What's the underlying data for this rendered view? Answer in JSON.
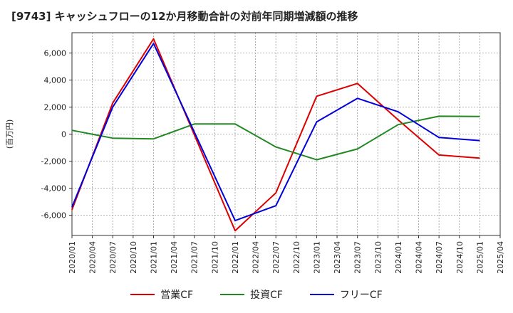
{
  "chart_data": {
    "type": "line",
    "title": "[9743]  キャッシュフローの12か月移動合計の対前年同期増減額の推移",
    "ylabel": "(百万円)",
    "xlabel": "",
    "ylim": [
      -7500,
      7500
    ],
    "yticks": [
      -6000,
      -4000,
      -2000,
      0,
      2000,
      4000,
      6000
    ],
    "ytick_labels": [
      "-6,000",
      "-4,000",
      "-2,000",
      "0",
      "2,000",
      "4,000",
      "6,000"
    ],
    "x_categories": [
      "2020/01",
      "2020/04",
      "2020/07",
      "2020/10",
      "2021/01",
      "2021/04",
      "2021/07",
      "2021/10",
      "2022/01",
      "2022/04",
      "2022/07",
      "2022/10",
      "2023/01",
      "2023/04",
      "2023/07",
      "2023/10",
      "2024/01",
      "2024/04",
      "2024/07",
      "2024/10",
      "2025/01",
      "2025/04"
    ],
    "grid": true,
    "legend_position": "bottom",
    "series": [
      {
        "name": "営業CF",
        "color": "#dd0000",
        "points": [
          {
            "x": "2020/01",
            "y": -5600
          },
          {
            "x": "2020/07",
            "y": 2300
          },
          {
            "x": "2021/01",
            "y": 7050
          },
          {
            "x": "2022/01",
            "y": -7150
          },
          {
            "x": "2022/07",
            "y": -4350
          },
          {
            "x": "2023/01",
            "y": 2800
          },
          {
            "x": "2023/07",
            "y": 3750
          },
          {
            "x": "2024/01",
            "y": 1050
          },
          {
            "x": "2024/07",
            "y": -1550
          },
          {
            "x": "2025/01",
            "y": -1780
          }
        ]
      },
      {
        "name": "投資CF",
        "color": "#228822",
        "points": [
          {
            "x": "2020/01",
            "y": 280
          },
          {
            "x": "2020/07",
            "y": -300
          },
          {
            "x": "2021/01",
            "y": -350
          },
          {
            "x": "2021/07",
            "y": 750
          },
          {
            "x": "2022/01",
            "y": 750
          },
          {
            "x": "2022/07",
            "y": -950
          },
          {
            "x": "2023/01",
            "y": -1900
          },
          {
            "x": "2023/07",
            "y": -1100
          },
          {
            "x": "2024/01",
            "y": 700
          },
          {
            "x": "2024/07",
            "y": 1320
          },
          {
            "x": "2025/01",
            "y": 1300
          }
        ]
      },
      {
        "name": "フリーCF",
        "color": "#0000dd",
        "points": [
          {
            "x": "2020/01",
            "y": -5400
          },
          {
            "x": "2020/07",
            "y": 2000
          },
          {
            "x": "2021/01",
            "y": 6700
          },
          {
            "x": "2022/01",
            "y": -6400
          },
          {
            "x": "2022/07",
            "y": -5300
          },
          {
            "x": "2023/01",
            "y": 900
          },
          {
            "x": "2023/07",
            "y": 2650
          },
          {
            "x": "2024/01",
            "y": 1650
          },
          {
            "x": "2024/07",
            "y": -250
          },
          {
            "x": "2025/01",
            "y": -480
          }
        ]
      }
    ]
  }
}
